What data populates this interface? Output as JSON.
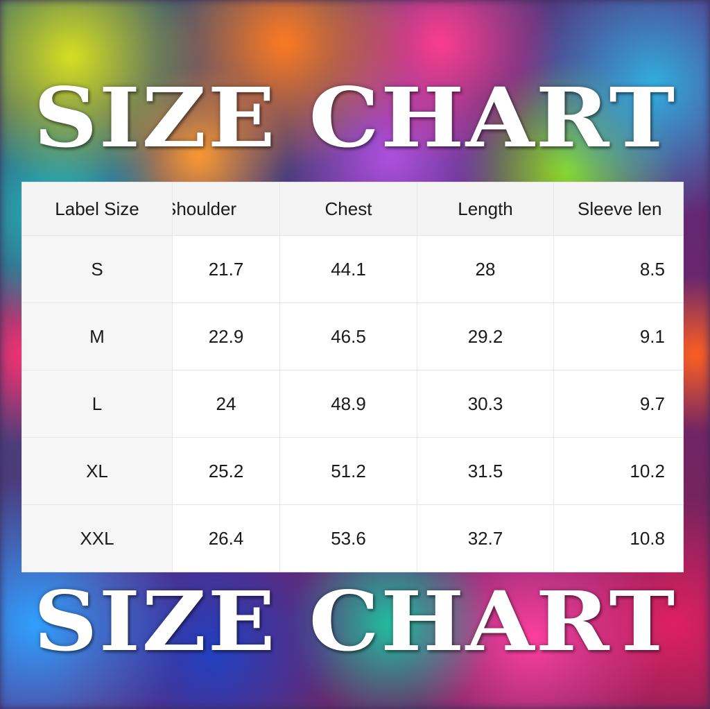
{
  "title_top": "SIZE CHART",
  "title_bottom": "SIZE CHART",
  "table": {
    "headers": [
      "Label Size",
      "Shoulder",
      "Chest",
      "Length",
      "Sleeve len"
    ],
    "rows": [
      [
        "S",
        "21.7",
        "44.1",
        "28",
        "8.5"
      ],
      [
        "M",
        "22.9",
        "46.5",
        "29.2",
        "9.1"
      ],
      [
        "L",
        "24",
        "48.9",
        "30.3",
        "9.7"
      ],
      [
        "XL",
        "25.2",
        "51.2",
        "31.5",
        "10.2"
      ],
      [
        "XXL",
        "26.4",
        "53.6",
        "32.7",
        "10.8"
      ]
    ]
  }
}
